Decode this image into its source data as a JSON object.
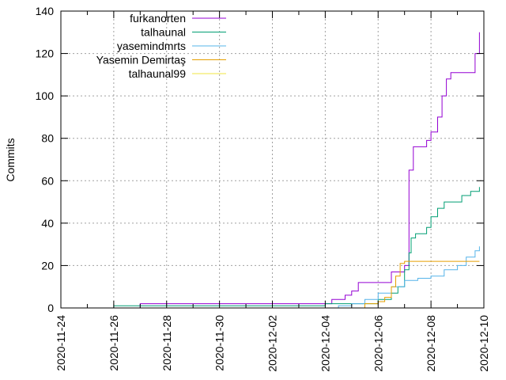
{
  "chart_data": {
    "type": "line",
    "title": "",
    "xlabel": "",
    "ylabel": "Commits",
    "ylim": [
      0,
      140
    ],
    "xlim": [
      "2020-11-24",
      "2020-12-10"
    ],
    "x_tick_labels": [
      "2020-11-24",
      "2020-11-26",
      "2020-11-28",
      "2020-11-30",
      "2020-12-02",
      "2020-12-04",
      "2020-12-06",
      "2020-12-08",
      "2020-12-10"
    ],
    "y_tick_labels": [
      "0",
      "20",
      "40",
      "60",
      "80",
      "100",
      "120",
      "140"
    ],
    "y_ticks": [
      0,
      20,
      40,
      60,
      80,
      100,
      120,
      140
    ],
    "grid": true,
    "legend_position": "top-left",
    "series": [
      {
        "name": "furkanorten",
        "color": "#9400d3",
        "points": [
          [
            "2020-11-27 00:00",
            0
          ],
          [
            "2020-11-27 00:00",
            2
          ],
          [
            "2020-12-04 06:00",
            2
          ],
          [
            "2020-12-04 06:00",
            4
          ],
          [
            "2020-12-04 18:00",
            4
          ],
          [
            "2020-12-04 18:00",
            6
          ],
          [
            "2020-12-05 00:00",
            6
          ],
          [
            "2020-12-05 00:00",
            8
          ],
          [
            "2020-12-05 06:00",
            8
          ],
          [
            "2020-12-05 06:00",
            12
          ],
          [
            "2020-12-06 12:00",
            12
          ],
          [
            "2020-12-06 12:00",
            17
          ],
          [
            "2020-12-07 00:00",
            17
          ],
          [
            "2020-12-07 00:00",
            20
          ],
          [
            "2020-12-07 04:00",
            20
          ],
          [
            "2020-12-07 04:00",
            65
          ],
          [
            "2020-12-07 08:00",
            65
          ],
          [
            "2020-12-07 08:00",
            76
          ],
          [
            "2020-12-07 20:00",
            76
          ],
          [
            "2020-12-07 20:00",
            79
          ],
          [
            "2020-12-08 00:00",
            79
          ],
          [
            "2020-12-08 00:00",
            83
          ],
          [
            "2020-12-08 06:00",
            83
          ],
          [
            "2020-12-08 06:00",
            90
          ],
          [
            "2020-12-08 10:00",
            90
          ],
          [
            "2020-12-08 10:00",
            100
          ],
          [
            "2020-12-08 14:00",
            100
          ],
          [
            "2020-12-08 14:00",
            108
          ],
          [
            "2020-12-08 18:00",
            108
          ],
          [
            "2020-12-08 18:00",
            111
          ],
          [
            "2020-12-09 16:00",
            111
          ],
          [
            "2020-12-09 16:00",
            120
          ],
          [
            "2020-12-09 20:00",
            120
          ],
          [
            "2020-12-09 20:00",
            130
          ]
        ]
      },
      {
        "name": "talhaunal",
        "color": "#009e73",
        "points": [
          [
            "2020-11-26 00:00",
            0
          ],
          [
            "2020-11-26 00:00",
            1
          ],
          [
            "2020-12-04 00:00",
            1
          ],
          [
            "2020-12-04 00:00",
            2
          ],
          [
            "2020-12-06 00:00",
            2
          ],
          [
            "2020-12-06 00:00",
            4
          ],
          [
            "2020-12-06 12:00",
            4
          ],
          [
            "2020-12-06 12:00",
            7
          ],
          [
            "2020-12-06 18:00",
            7
          ],
          [
            "2020-12-06 18:00",
            10
          ],
          [
            "2020-12-07 00:00",
            10
          ],
          [
            "2020-12-07 00:00",
            18
          ],
          [
            "2020-12-07 04:00",
            18
          ],
          [
            "2020-12-07 04:00",
            26
          ],
          [
            "2020-12-07 06:00",
            26
          ],
          [
            "2020-12-07 06:00",
            33
          ],
          [
            "2020-12-07 10:00",
            33
          ],
          [
            "2020-12-07 10:00",
            35
          ],
          [
            "2020-12-07 20:00",
            35
          ],
          [
            "2020-12-07 20:00",
            38
          ],
          [
            "2020-12-08 00:00",
            38
          ],
          [
            "2020-12-08 00:00",
            43
          ],
          [
            "2020-12-08 06:00",
            43
          ],
          [
            "2020-12-08 06:00",
            47
          ],
          [
            "2020-12-08 12:00",
            47
          ],
          [
            "2020-12-08 12:00",
            50
          ],
          [
            "2020-12-09 04:00",
            50
          ],
          [
            "2020-12-09 04:00",
            53
          ],
          [
            "2020-12-09 12:00",
            53
          ],
          [
            "2020-12-09 12:00",
            55
          ],
          [
            "2020-12-09 20:00",
            55
          ],
          [
            "2020-12-09 20:00",
            57
          ]
        ]
      },
      {
        "name": "yasemindmrts",
        "color": "#56b4e9",
        "points": [
          [
            "2020-11-26 00:00",
            0
          ],
          [
            "2020-12-04 12:00",
            0
          ],
          [
            "2020-12-04 12:00",
            1
          ],
          [
            "2020-12-05 00:00",
            1
          ],
          [
            "2020-12-05 00:00",
            2
          ],
          [
            "2020-12-05 12:00",
            2
          ],
          [
            "2020-12-05 12:00",
            4
          ],
          [
            "2020-12-06 00:00",
            4
          ],
          [
            "2020-12-06 00:00",
            7
          ],
          [
            "2020-12-06 12:00",
            7
          ],
          [
            "2020-12-06 12:00",
            10
          ],
          [
            "2020-12-07 00:00",
            10
          ],
          [
            "2020-12-07 00:00",
            13
          ],
          [
            "2020-12-07 12:00",
            13
          ],
          [
            "2020-12-07 12:00",
            14
          ],
          [
            "2020-12-08 00:00",
            14
          ],
          [
            "2020-12-08 00:00",
            15
          ],
          [
            "2020-12-08 12:00",
            15
          ],
          [
            "2020-12-08 12:00",
            18
          ],
          [
            "2020-12-09 00:00",
            18
          ],
          [
            "2020-12-09 00:00",
            20
          ],
          [
            "2020-12-09 08:00",
            20
          ],
          [
            "2020-12-09 08:00",
            24
          ],
          [
            "2020-12-09 16:00",
            24
          ],
          [
            "2020-12-09 16:00",
            27
          ],
          [
            "2020-12-09 20:00",
            27
          ],
          [
            "2020-12-09 20:00",
            29
          ]
        ]
      },
      {
        "name": "Yasemin Demirtaş",
        "color": "#e69f00",
        "points": [
          [
            "2020-12-04 12:00",
            0
          ],
          [
            "2020-12-05 12:00",
            0
          ],
          [
            "2020-12-05 12:00",
            2
          ],
          [
            "2020-12-06 00:00",
            2
          ],
          [
            "2020-12-06 00:00",
            3
          ],
          [
            "2020-12-06 06:00",
            3
          ],
          [
            "2020-12-06 06:00",
            5
          ],
          [
            "2020-12-06 12:00",
            5
          ],
          [
            "2020-12-06 12:00",
            10
          ],
          [
            "2020-12-06 16:00",
            10
          ],
          [
            "2020-12-06 16:00",
            15
          ],
          [
            "2020-12-06 20:00",
            15
          ],
          [
            "2020-12-06 20:00",
            21
          ],
          [
            "2020-12-07 00:00",
            21
          ],
          [
            "2020-12-07 00:00",
            22
          ],
          [
            "2020-12-09 20:00",
            22
          ]
        ]
      },
      {
        "name": "talhaunal99",
        "color": "#f0e442",
        "points": [
          [
            "2020-12-09 12:00",
            0
          ],
          [
            "2020-12-09 14:00",
            0
          ]
        ]
      }
    ]
  }
}
